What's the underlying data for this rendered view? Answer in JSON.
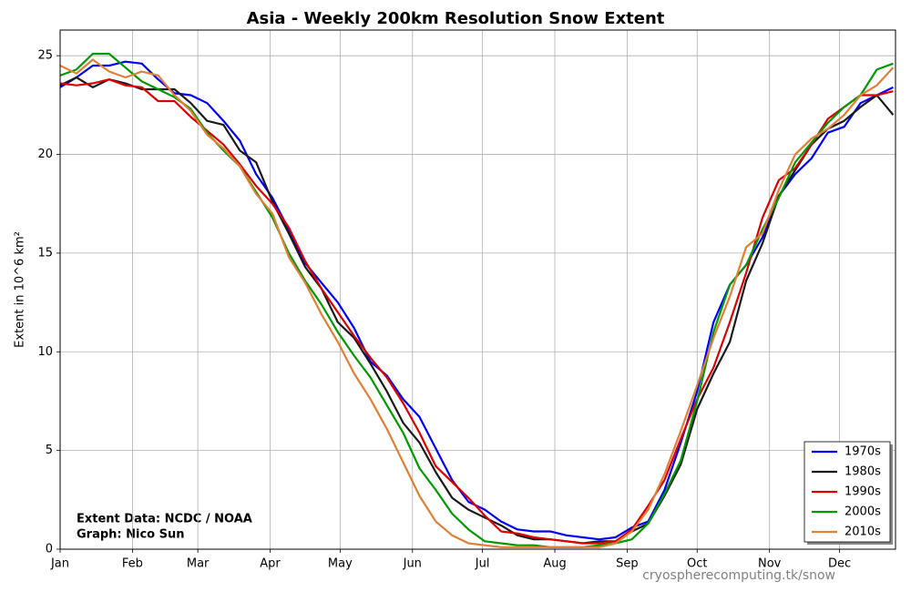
{
  "chart_data": {
    "type": "line",
    "title": "Asia - Weekly 200km Resolution Snow Extent",
    "y_label": "Extent in 10^6 km²",
    "annotations": [
      "Extent Data: NCDC / NOAA",
      "Graph: Nico Sun"
    ],
    "watermark": "cryospherecomputing.tk/snow",
    "x": [
      0,
      7,
      14,
      21,
      28,
      35,
      42,
      49,
      56,
      63,
      70,
      77,
      84,
      91,
      98,
      105,
      112,
      119,
      126,
      133,
      140,
      147,
      154,
      161,
      168,
      175,
      182,
      189,
      196,
      203,
      210,
      217,
      224,
      231,
      238,
      245,
      252,
      259,
      266,
      273,
      280,
      287,
      294,
      301,
      308,
      315,
      322,
      329,
      336,
      343,
      350,
      357
    ],
    "xlim": [
      0,
      358
    ],
    "xticks": [
      {
        "value": 0,
        "label": "Jan"
      },
      {
        "value": 31,
        "label": "Feb"
      },
      {
        "value": 59,
        "label": "Mar"
      },
      {
        "value": 90,
        "label": "Apr"
      },
      {
        "value": 120,
        "label": "May"
      },
      {
        "value": 151,
        "label": "Jun"
      },
      {
        "value": 181,
        "label": "Jul"
      },
      {
        "value": 212,
        "label": "Aug"
      },
      {
        "value": 243,
        "label": "Sep"
      },
      {
        "value": 273,
        "label": "Oct"
      },
      {
        "value": 304,
        "label": "Nov"
      },
      {
        "value": 334,
        "label": "Dec"
      }
    ],
    "ylim": [
      0,
      26.3
    ],
    "yticks": [
      0,
      5,
      10,
      15,
      20,
      25
    ],
    "grid": true,
    "legend": "lower right",
    "series": [
      {
        "name": "1970s",
        "color": "#0000ff",
        "values": [
          23.4,
          23.9,
          24.5,
          24.5,
          24.7,
          24.6,
          23.8,
          23.1,
          23.0,
          22.6,
          21.7,
          20.7,
          19.0,
          17.8,
          16.2,
          14.5,
          13.5,
          12.5,
          11.2,
          9.5,
          8.8,
          7.6,
          6.7,
          5.1,
          3.5,
          2.4,
          2.0,
          1.4,
          1.0,
          0.9,
          0.9,
          0.7,
          0.6,
          0.5,
          0.6,
          1.1,
          1.4,
          3.0,
          5.4,
          8.0,
          11.5,
          13.4,
          14.4,
          15.8,
          17.9,
          19.0,
          19.8,
          21.1,
          21.4,
          22.6,
          23.0,
          23.4
        ]
      },
      {
        "name": "1980s",
        "color": "#1a1a1a",
        "values": [
          23.5,
          23.9,
          23.4,
          23.8,
          23.6,
          23.3,
          23.3,
          23.3,
          22.6,
          21.7,
          21.5,
          20.2,
          19.6,
          17.6,
          16.0,
          14.3,
          13.2,
          11.5,
          10.7,
          9.4,
          8.0,
          6.4,
          5.4,
          3.9,
          2.6,
          2.0,
          1.6,
          1.2,
          0.7,
          0.5,
          0.5,
          0.4,
          0.3,
          0.4,
          0.4,
          0.9,
          1.3,
          2.7,
          4.3,
          7.1,
          8.9,
          10.5,
          13.6,
          15.5,
          17.9,
          19.2,
          20.5,
          21.3,
          21.7,
          22.4,
          23.0,
          22.0
        ]
      },
      {
        "name": "1990s",
        "color": "#dd0000",
        "values": [
          23.6,
          23.5,
          23.6,
          23.8,
          23.5,
          23.4,
          22.7,
          22.7,
          21.9,
          21.2,
          20.5,
          19.5,
          18.4,
          17.5,
          16.3,
          14.6,
          13.2,
          12.0,
          10.8,
          9.7,
          8.7,
          7.4,
          5.9,
          4.2,
          3.4,
          2.6,
          1.7,
          0.9,
          0.8,
          0.6,
          0.5,
          0.4,
          0.3,
          0.3,
          0.4,
          1.0,
          2.2,
          3.5,
          5.6,
          7.6,
          9.2,
          11.5,
          14.0,
          16.8,
          18.7,
          19.3,
          20.5,
          21.8,
          22.4,
          23.0,
          23.0,
          23.2
        ]
      },
      {
        "name": "2000s",
        "color": "#009900",
        "values": [
          24.0,
          24.3,
          25.1,
          25.1,
          24.4,
          23.7,
          23.3,
          22.9,
          22.3,
          21.1,
          20.2,
          19.4,
          18.1,
          16.8,
          15.0,
          13.6,
          12.4,
          11.0,
          9.8,
          8.7,
          7.3,
          5.9,
          4.1,
          3.0,
          1.8,
          1.0,
          0.4,
          0.3,
          0.2,
          0.2,
          0.1,
          0.1,
          0.1,
          0.2,
          0.3,
          0.5,
          1.3,
          2.8,
          4.5,
          7.5,
          11.0,
          13.4,
          14.4,
          16.2,
          17.8,
          19.6,
          20.6,
          21.6,
          22.4,
          23.0,
          24.3,
          24.6
        ]
      },
      {
        "name": "2010s",
        "color": "#e07f35",
        "values": [
          24.5,
          24.1,
          24.8,
          24.2,
          23.9,
          24.2,
          24.0,
          23.0,
          22.2,
          21.0,
          20.3,
          19.4,
          18.0,
          17.0,
          14.8,
          13.5,
          11.9,
          10.5,
          8.9,
          7.6,
          6.1,
          4.4,
          2.7,
          1.4,
          0.7,
          0.3,
          0.2,
          0.1,
          0.1,
          0.1,
          0.1,
          0.1,
          0.1,
          0.1,
          0.3,
          0.9,
          2.0,
          3.8,
          6.0,
          8.3,
          10.7,
          12.8,
          15.3,
          16.0,
          18.2,
          20.0,
          20.8,
          21.3,
          22.0,
          23.0,
          23.5,
          24.4
        ]
      }
    ]
  }
}
